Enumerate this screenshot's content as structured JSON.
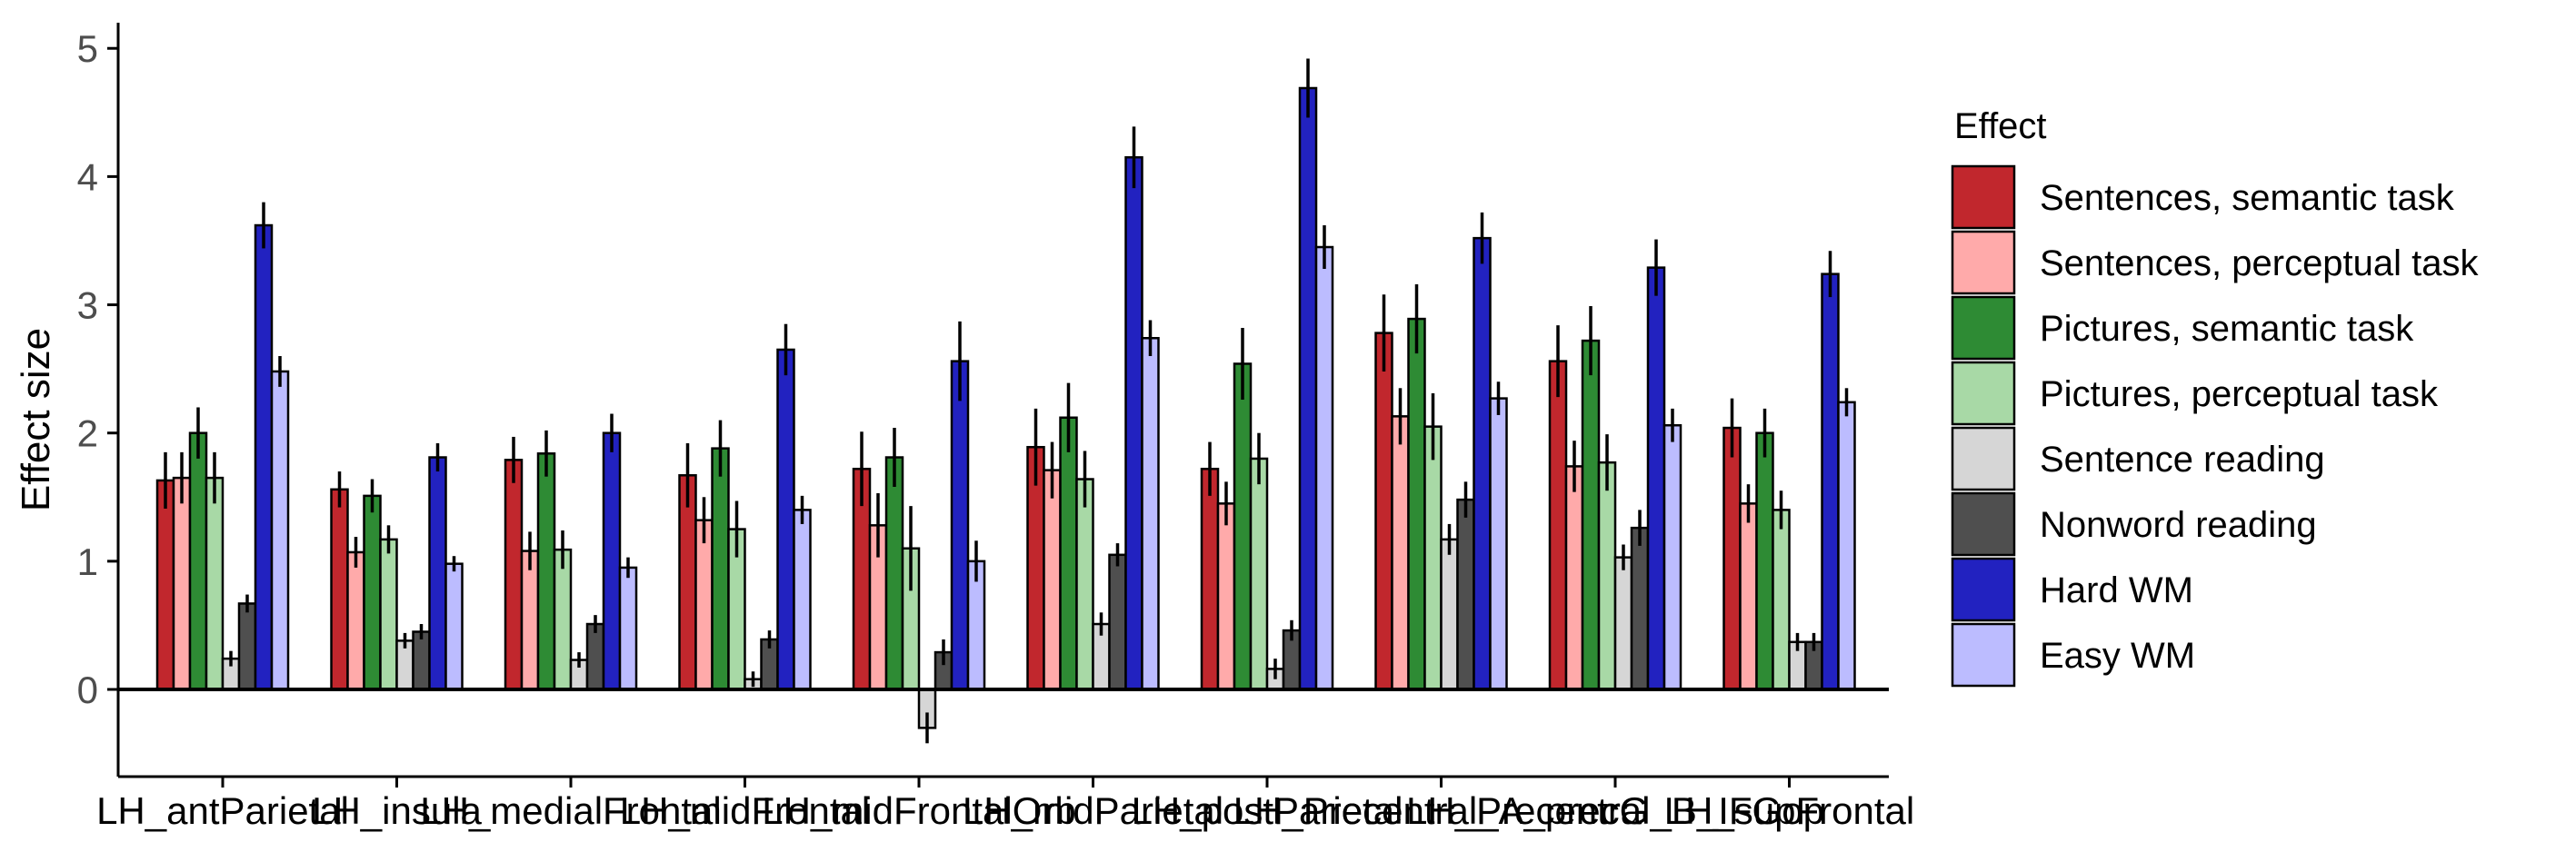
{
  "chart_data": {
    "type": "bar",
    "ylabel": "Effect size",
    "xlabel": "",
    "ylim": [
      -0.68,
      5.2
    ],
    "yticks": [
      0,
      1,
      2,
      3,
      4,
      5
    ],
    "categories": [
      "LH_antParietal",
      "LH_insula",
      "LH_medialFrontal",
      "LH_midFrontal",
      "LH_midFrontalOrb",
      "LH_midParietal",
      "LH_postParietal",
      "LH_Precentral_A_precG",
      "LH_Precentral_B_IFGop",
      "LH_supFrontal"
    ],
    "legend": {
      "title": "Effect",
      "position": "right"
    },
    "series": [
      {
        "name": "Sentences, semantic task",
        "color": "#c1272d",
        "values": [
          1.63,
          1.56,
          1.79,
          1.67,
          1.72,
          1.89,
          1.72,
          2.78,
          2.56,
          2.04
        ],
        "errors": [
          0.22,
          0.14,
          0.18,
          0.25,
          0.29,
          0.3,
          0.21,
          0.3,
          0.28,
          0.23
        ]
      },
      {
        "name": "Sentences, perceptual task",
        "color": "#ffaaaa",
        "values": [
          1.65,
          1.07,
          1.08,
          1.32,
          1.28,
          1.71,
          1.45,
          2.13,
          1.74,
          1.45
        ],
        "errors": [
          0.2,
          0.12,
          0.15,
          0.18,
          0.25,
          0.22,
          0.17,
          0.22,
          0.2,
          0.15
        ]
      },
      {
        "name": "Pictures, semantic task",
        "color": "#2e8b34",
        "values": [
          2.0,
          1.51,
          1.84,
          1.88,
          1.81,
          2.12,
          2.54,
          2.89,
          2.72,
          2.0
        ],
        "errors": [
          0.2,
          0.13,
          0.18,
          0.22,
          0.23,
          0.27,
          0.28,
          0.27,
          0.27,
          0.19
        ]
      },
      {
        "name": "Pictures, perceptual task",
        "color": "#a8d9a6",
        "values": [
          1.65,
          1.17,
          1.09,
          1.25,
          1.1,
          1.64,
          1.8,
          2.05,
          1.77,
          1.4
        ],
        "errors": [
          0.2,
          0.11,
          0.15,
          0.22,
          0.33,
          0.22,
          0.2,
          0.26,
          0.22,
          0.15
        ]
      },
      {
        "name": "Sentence reading",
        "color": "#d6d6d6",
        "values": [
          0.24,
          0.38,
          0.23,
          0.08,
          -0.3,
          0.51,
          0.16,
          1.17,
          1.03,
          0.37
        ],
        "errors": [
          0.06,
          0.06,
          0.06,
          0.06,
          0.12,
          0.09,
          0.08,
          0.12,
          0.1,
          0.07
        ]
      },
      {
        "name": "Nonword reading",
        "color": "#4f4f4f",
        "values": [
          0.67,
          0.45,
          0.51,
          0.39,
          0.29,
          1.05,
          0.46,
          1.48,
          1.26,
          0.37
        ],
        "errors": [
          0.07,
          0.06,
          0.07,
          0.07,
          0.1,
          0.09,
          0.08,
          0.14,
          0.14,
          0.07
        ]
      },
      {
        "name": "Hard WM",
        "color": "#2222c0",
        "values": [
          3.62,
          1.81,
          2.0,
          2.65,
          2.56,
          4.15,
          4.69,
          3.52,
          3.29,
          3.24
        ],
        "errors": [
          0.18,
          0.11,
          0.15,
          0.2,
          0.31,
          0.24,
          0.23,
          0.2,
          0.22,
          0.18
        ]
      },
      {
        "name": "Easy WM",
        "color": "#bcbcff",
        "values": [
          2.48,
          0.98,
          0.95,
          1.4,
          1.0,
          2.74,
          3.45,
          2.27,
          2.06,
          2.24
        ],
        "errors": [
          0.12,
          0.06,
          0.08,
          0.11,
          0.16,
          0.14,
          0.17,
          0.13,
          0.13,
          0.11
        ]
      }
    ],
    "grid": false
  }
}
